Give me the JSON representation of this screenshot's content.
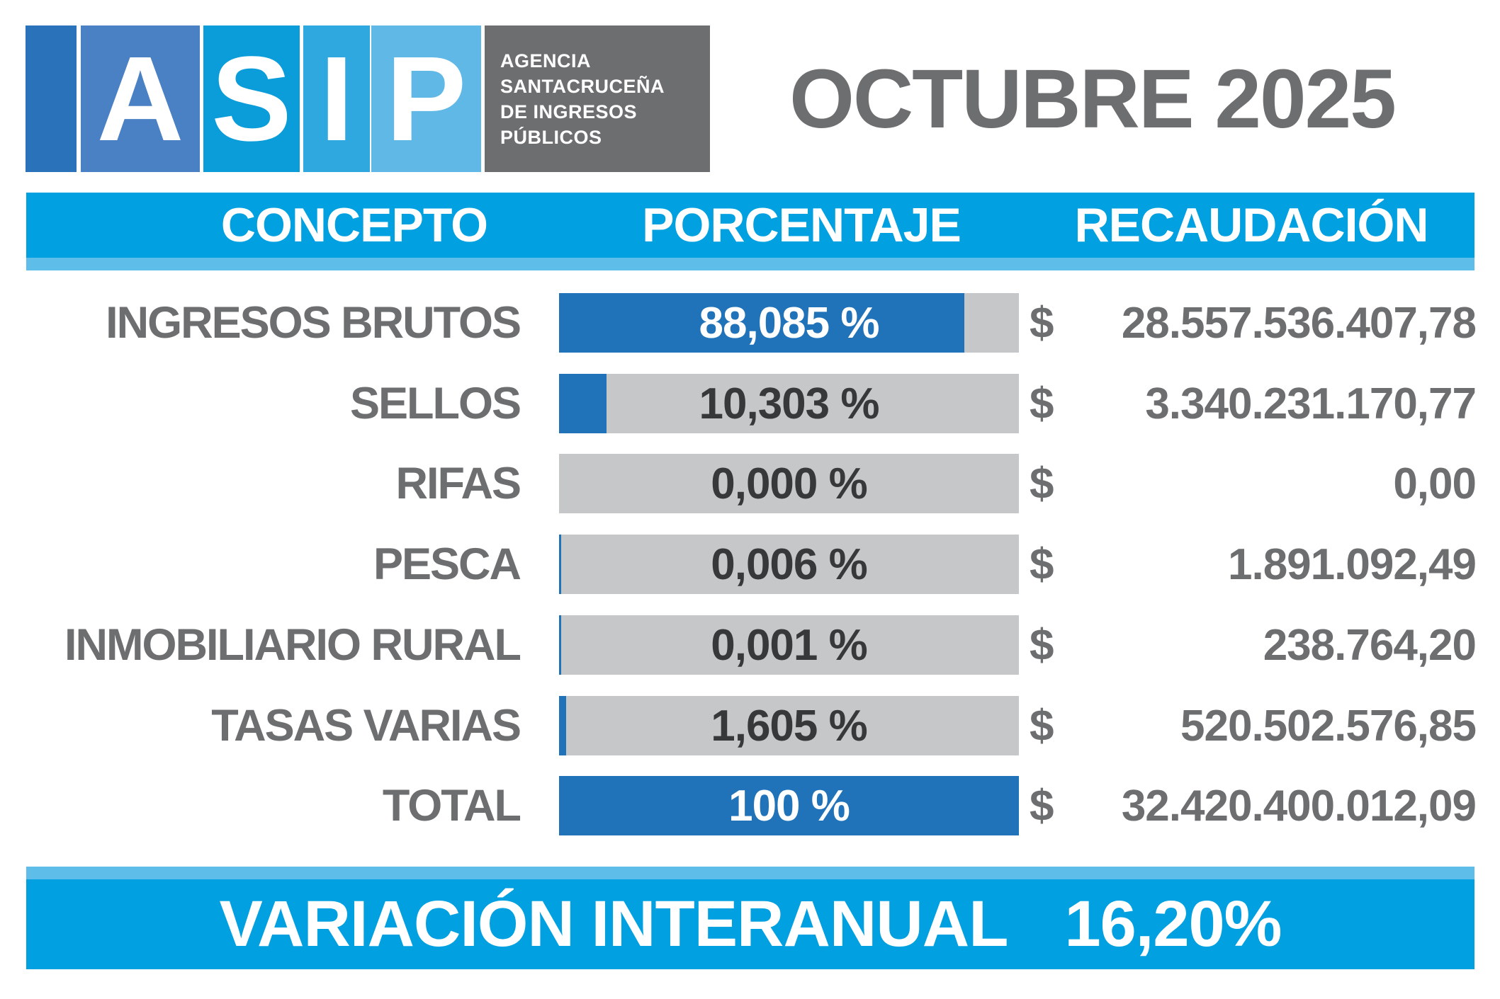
{
  "brand": {
    "letters": [
      "A",
      "S",
      "I",
      "P"
    ],
    "agency_lines": [
      "AGENCIA",
      "SANTACRUCEÑA",
      "DE INGRESOS",
      "PÚBLICOS"
    ],
    "period": "OCTUBRE 2025"
  },
  "table": {
    "columns": [
      "CONCEPTO",
      "PORCENTAJE",
      "RECAUDACIÓN"
    ],
    "currency_symbol": "$",
    "rows": [
      {
        "concept": "INGRESOS BRUTOS",
        "percent": 88.085,
        "percent_label": "88,085 %",
        "amount": "28.557.536.407,78"
      },
      {
        "concept": "SELLOS",
        "percent": 10.303,
        "percent_label": "10,303 %",
        "amount": "3.340.231.170,77"
      },
      {
        "concept": "RIFAS",
        "percent": 0.0,
        "percent_label": "0,000 %",
        "amount": "0,00"
      },
      {
        "concept": "PESCA",
        "percent": 0.006,
        "percent_label": "0,006 %",
        "amount": "1.891.092,49"
      },
      {
        "concept": "INMOBILIARIO RURAL",
        "percent": 0.001,
        "percent_label": "0,001 %",
        "amount": "238.764,20"
      },
      {
        "concept": "TASAS VARIAS",
        "percent": 1.605,
        "percent_label": "1,605 %",
        "amount": "520.502.576,85"
      },
      {
        "concept": "TOTAL",
        "percent": 100.0,
        "percent_label": "100 %",
        "amount": "32.420.400.012,09"
      }
    ]
  },
  "footer": {
    "label": "VARIACIÓN INTERANUAL",
    "value": "16,20%"
  },
  "colors": {
    "header_blue": "#00a0e1",
    "light_blue_strip": "#5fbee9",
    "bar_fill_blue": "#2173b9",
    "bar_bg_gray": "#c6c7c9",
    "text_gray": "#6d6e70",
    "percent_text_dark": "#373839",
    "logo_block_1": "#2a72b9",
    "logo_block_2": "#4a80c4",
    "logo_block_3": "#0a9dda",
    "logo_block_4": "#2fa8e0",
    "logo_block_5": "#60b8e7",
    "agency_box_gray": "#6d6e70"
  },
  "chart_data": {
    "type": "bar",
    "title": "OCTUBRE 2025",
    "xlabel": "PORCENTAJE",
    "ylabel": "CONCEPTO",
    "orientation": "horizontal",
    "xlim": [
      0,
      100
    ],
    "categories": [
      "INGRESOS BRUTOS",
      "SELLOS",
      "RIFAS",
      "PESCA",
      "INMOBILIARIO RURAL",
      "TASAS VARIAS",
      "TOTAL"
    ],
    "series": [
      {
        "name": "PORCENTAJE (%)",
        "values": [
          88.085,
          10.303,
          0.0,
          0.006,
          0.001,
          1.605,
          100
        ]
      },
      {
        "name": "RECAUDACIÓN ($)",
        "values": [
          28557536407.78,
          3340231170.77,
          0.0,
          1891092.49,
          238764.2,
          520502576.85,
          32420400012.09
        ]
      }
    ],
    "annotations": [
      "VARIACIÓN INTERANUAL 16,20%"
    ],
    "legend": false,
    "grid": false
  }
}
